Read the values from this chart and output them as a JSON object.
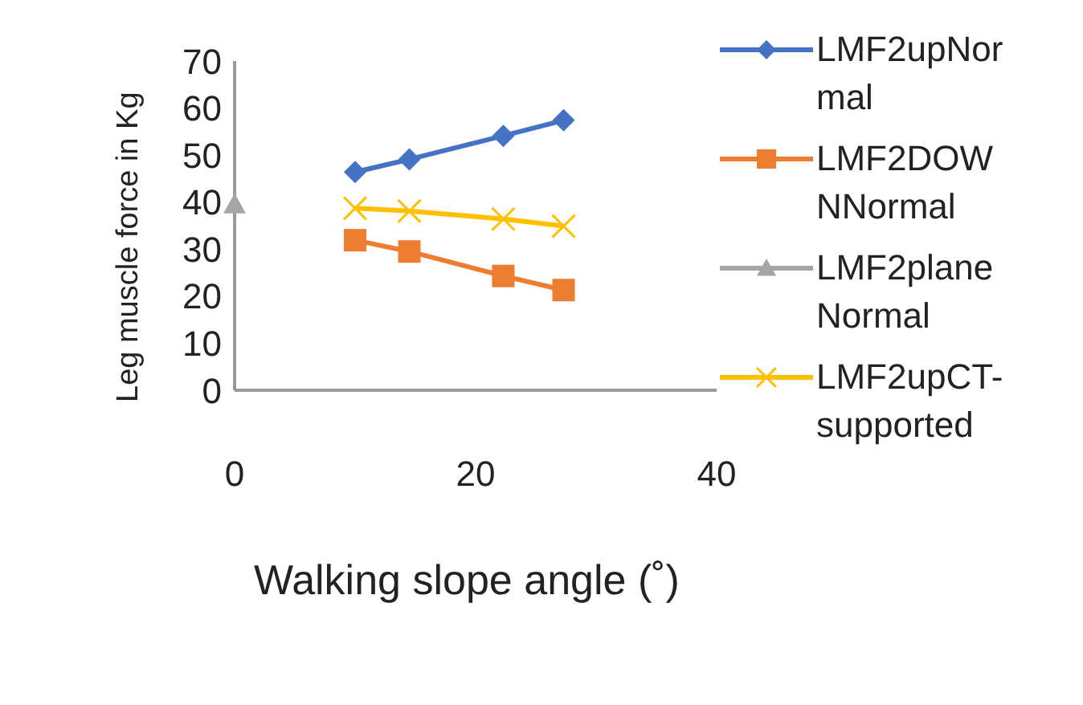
{
  "chart_data": {
    "type": "line",
    "xlabel": "Walking slope angle (˚)",
    "ylabel": "Leg muscle force in Kg",
    "xlim": [
      0,
      40
    ],
    "xticks": [
      0,
      20,
      40
    ],
    "ylim": [
      0,
      70
    ],
    "yticks": [
      0,
      10,
      20,
      30,
      40,
      50,
      60,
      70
    ],
    "grid": false,
    "legend": "right",
    "series": [
      {
        "name": "LMF2upNormal",
        "color": "#4472c4",
        "marker": "diamond",
        "x": [
          10,
          14.5,
          22.3,
          27.3
        ],
        "values": [
          46.4,
          49.1,
          54.1,
          57.4
        ]
      },
      {
        "name": "LMF2DOWNNormal",
        "color": "#ed7d31",
        "marker": "square",
        "x": [
          10,
          14.5,
          22.3,
          27.3
        ],
        "values": [
          31.9,
          29.5,
          24.3,
          21.3
        ]
      },
      {
        "name": "LMF2planeNormal",
        "color": "#a5a5a5",
        "marker": "triangle",
        "x": [
          0
        ],
        "values": [
          39.5
        ]
      },
      {
        "name": "LMF2upCT-supported",
        "color": "#ffc000",
        "marker": "cross",
        "x": [
          10,
          14.5,
          22.3,
          27.3
        ],
        "values": [
          38.7,
          38.1,
          36.4,
          34.9
        ]
      }
    ]
  }
}
